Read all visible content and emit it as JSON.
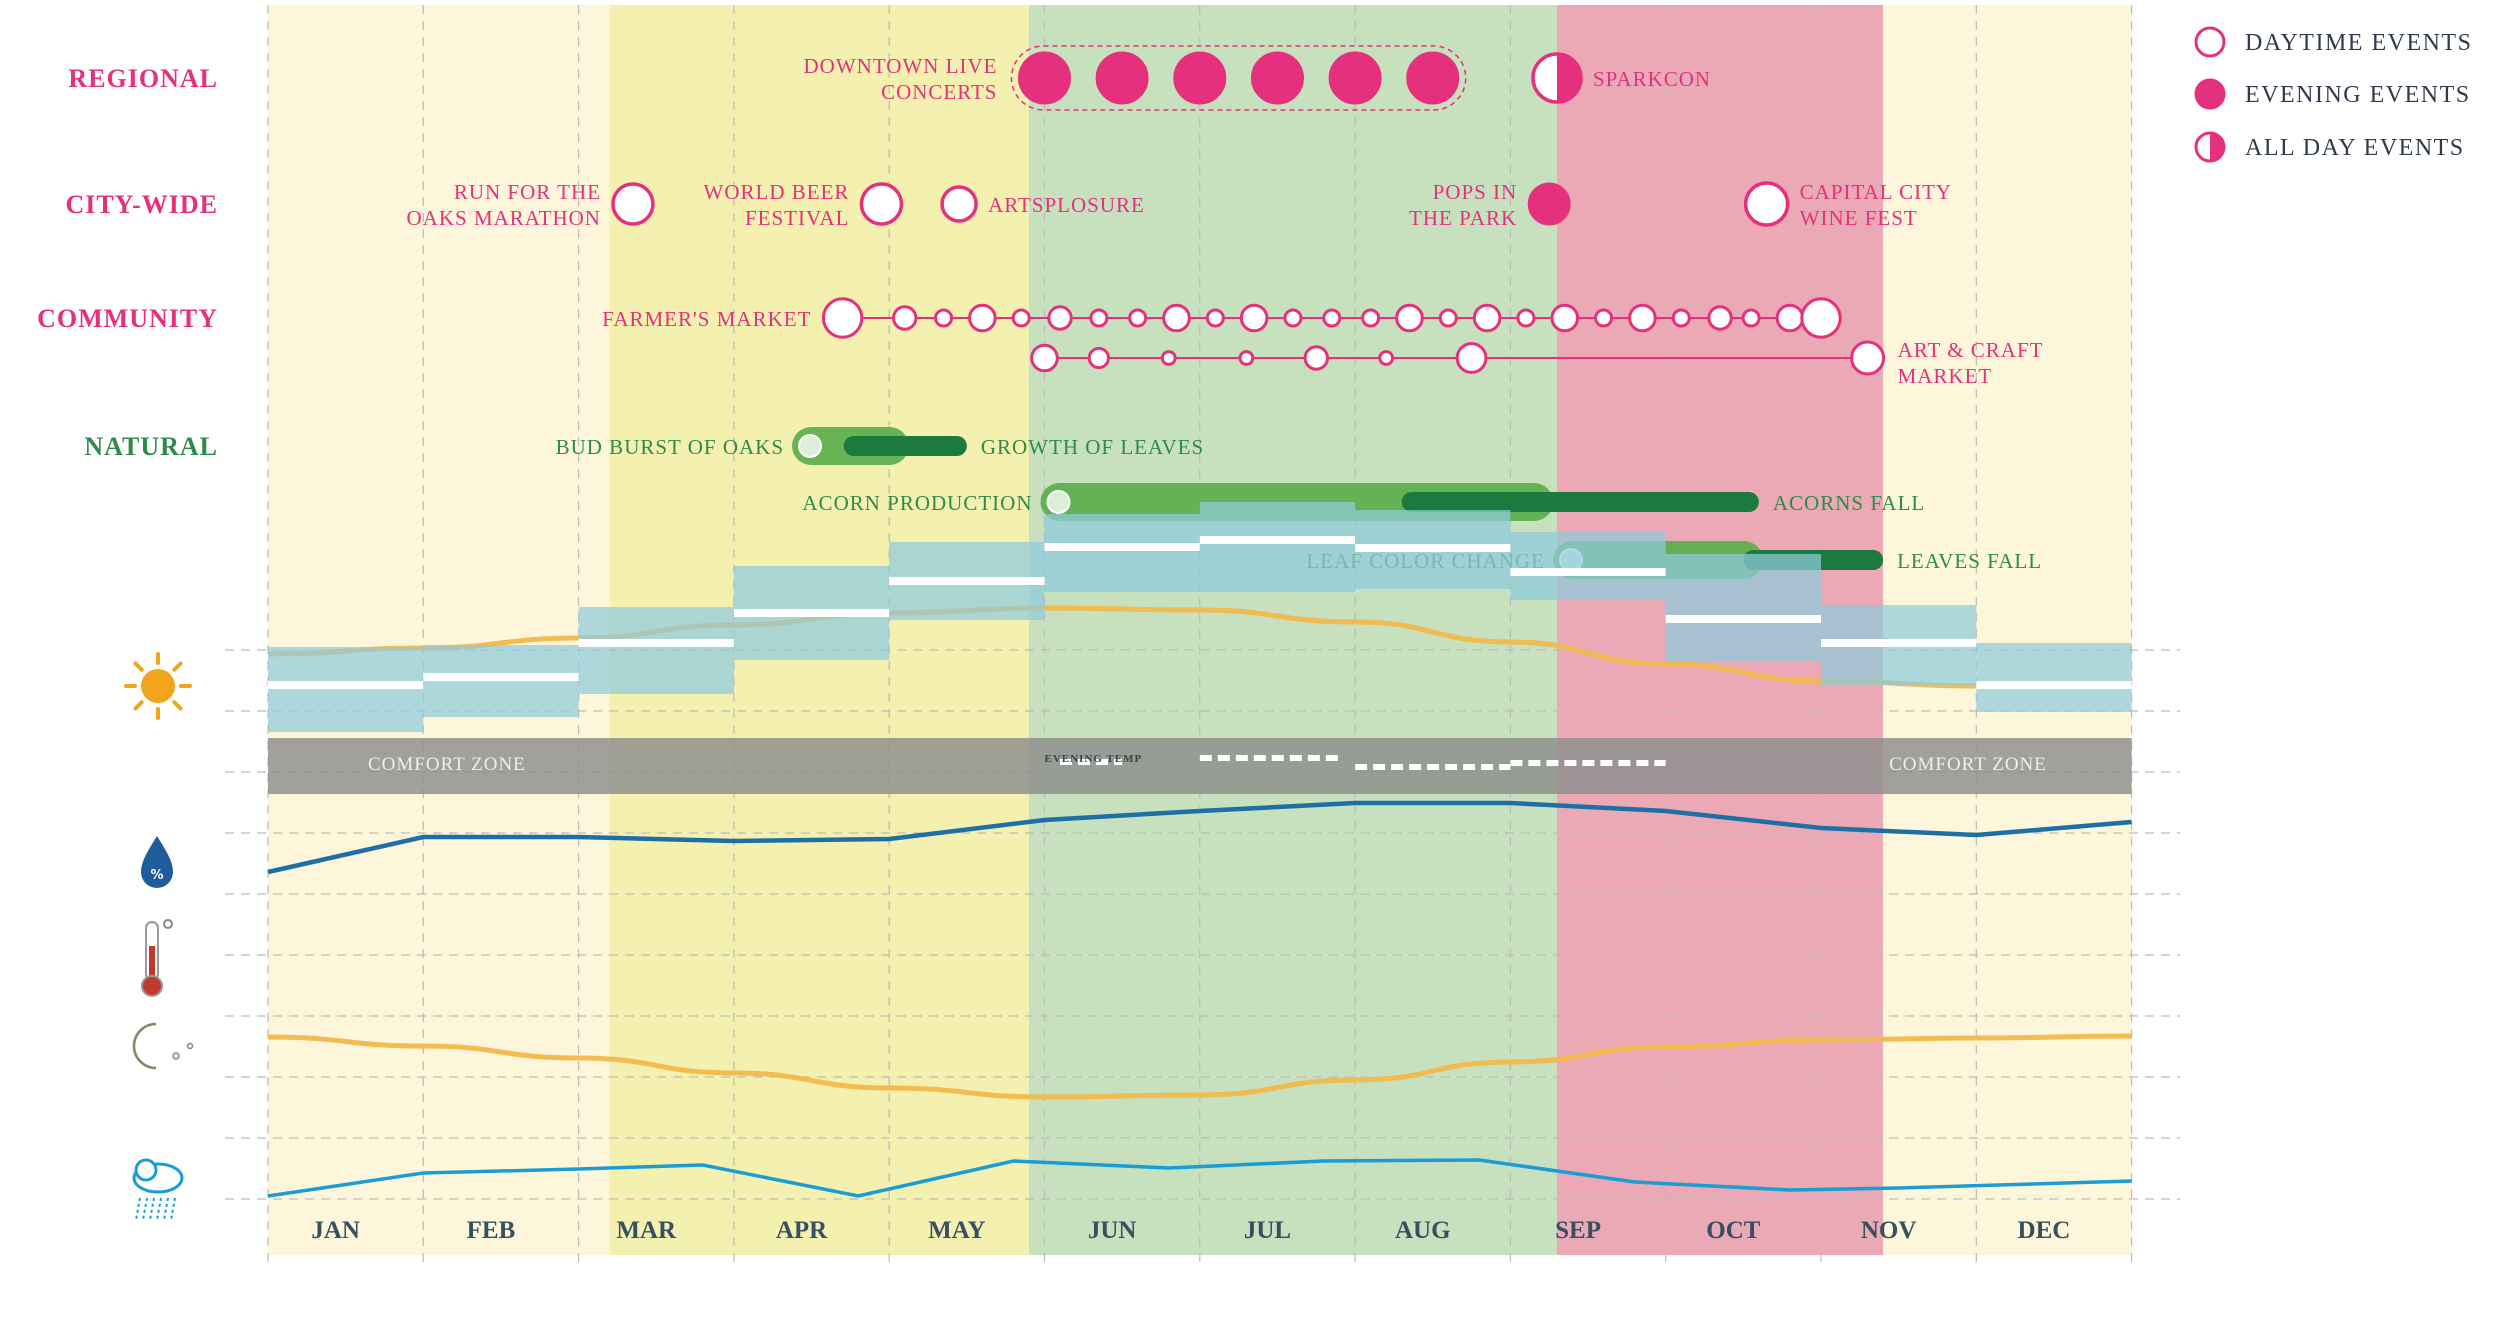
{
  "colors": {
    "accent_pink": "#E5307E",
    "natural_green": "#2E8B4A",
    "season_winter": "#FDF6DA",
    "season_spring": "#F4F0B0",
    "season_summer": "#C7E0BE",
    "season_fall": "#EAA9B4",
    "sunrise_line": "#F2B84B",
    "humidity_line": "#1E6FA6",
    "rain_line": "#1A9DD4",
    "temp_band": "#8FCBDC",
    "comfort_band": "#8C8C8C"
  },
  "categories": [
    {
      "key": "regional",
      "label": "REGIONAL"
    },
    {
      "key": "citywide",
      "label": "CITY-WIDE"
    },
    {
      "key": "community",
      "label": "COMMUNITY"
    },
    {
      "key": "natural",
      "label": "NATURAL"
    }
  ],
  "legend": [
    {
      "kind": "daytime",
      "label": "DAYTIME  EVENTS"
    },
    {
      "kind": "evening",
      "label": "EVENING  EVENTS"
    },
    {
      "kind": "allday",
      "label": "ALL DAY EVENTS"
    }
  ],
  "annotations": {
    "comfort_zone_left": "COMFORT ZONE",
    "comfort_zone_right": "COMFORT ZONE",
    "evening_temp": "EVENING TEMP"
  },
  "icons": [
    "sun-icon",
    "humidity-drop-icon",
    "thermometer-icon",
    "moon-icon",
    "rain-cloud-icon"
  ],
  "chart_data": {
    "type": "timeline",
    "months": [
      "JAN",
      "FEB",
      "MAR",
      "APR",
      "MAY",
      "JUN",
      "JUL",
      "AUG",
      "SEP",
      "OCT",
      "NOV",
      "DEC"
    ],
    "seasons": [
      {
        "name": "winter",
        "start": 0,
        "end": 2.2
      },
      {
        "name": "spring",
        "start": 2.2,
        "end": 4.9
      },
      {
        "name": "summer",
        "start": 4.9,
        "end": 8.3
      },
      {
        "name": "fall",
        "start": 8.3,
        "end": 10.4
      },
      {
        "name": "winter",
        "start": 10.4,
        "end": 12
      }
    ],
    "events": [
      {
        "row": "regional",
        "label": [
          "DOWNTOWN LIVE",
          "CONCERTS"
        ],
        "type": "evening",
        "dates": [
          5,
          5.5,
          6,
          6.5,
          7,
          7.5
        ],
        "size": 25,
        "group_outline": true
      },
      {
        "row": "regional",
        "label": [
          "SPARKCON"
        ],
        "type": "allday",
        "dates": [
          8.3
        ],
        "size": 24,
        "label_side": "right"
      },
      {
        "row": "citywide",
        "label": [
          "RUN FOR THE",
          "OAKS MARATHON"
        ],
        "type": "daytime",
        "dates": [
          2.35
        ],
        "size": 20
      },
      {
        "row": "citywide",
        "label": [
          "WORLD BEER",
          "FESTIVAL"
        ],
        "type": "daytime",
        "dates": [
          3.95
        ],
        "size": 20
      },
      {
        "row": "citywide",
        "label": [
          "ARTSPLOSURE"
        ],
        "type": "daytime",
        "dates": [
          4.45
        ],
        "size": 17,
        "label_side": "right"
      },
      {
        "row": "citywide",
        "label": [
          "POPS IN",
          "THE PARK"
        ],
        "type": "evening",
        "dates": [
          8.25
        ],
        "size": 20
      },
      {
        "row": "citywide",
        "label": [
          "CAPITAL CITY",
          "WINE FEST"
        ],
        "type": "daytime",
        "dates": [
          9.65
        ],
        "size": 21,
        "label_side": "right"
      }
    ],
    "series_markets": [
      {
        "label": [
          "FARMER'S MARKET"
        ],
        "label_side": "left",
        "dates": [
          3.7,
          4.1,
          4.35,
          4.6,
          4.85,
          5.1,
          5.35,
          5.6,
          5.85,
          6.1,
          6.35,
          6.6,
          6.85,
          7.1,
          7.35,
          7.6,
          7.85,
          8.1,
          8.35,
          8.6,
          8.85,
          9.1,
          9.35,
          9.55,
          9.8,
          10.0
        ],
        "sizes": [
          12,
          7,
          5,
          8,
          5,
          7,
          5,
          5,
          8,
          5,
          8,
          5,
          5,
          5,
          8,
          5,
          8,
          5,
          8,
          5,
          8,
          5,
          7,
          5,
          8,
          12
        ]
      },
      {
        "label": [
          "ART & CRAFT",
          "MARKET"
        ],
        "label_side": "right",
        "dates": [
          5.0,
          5.35,
          5.8,
          6.3,
          6.75,
          7.2,
          7.75,
          10.3
        ],
        "sizes": [
          8,
          6,
          4,
          4,
          7,
          4,
          9,
          10
        ]
      }
    ],
    "natural": [
      {
        "start_label": "BUD BURST OF OAKS",
        "end_label": "GROWTH OF LEAVES",
        "light": [
          3.4,
          4.1
        ],
        "dark": [
          3.45,
          4.5
        ]
      },
      {
        "start_label": "ACORN PRODUCTION",
        "end_label": "ACORNS FALL",
        "light": [
          5.0,
          8.25
        ],
        "dark": [
          7.3,
          9.6
        ]
      },
      {
        "start_label": "LEAF COLOR CHANGE",
        "end_label": "LEAVES FALL",
        "light": [
          8.3,
          9.6
        ],
        "dark": [
          9.5,
          10.4
        ]
      }
    ],
    "sunrise": [
      74,
      68,
      58,
      45,
      33,
      28,
      30,
      42,
      62,
      84,
      101,
      106,
      106
    ],
    "sunset": [
      647,
      656,
      668,
      683,
      698,
      707,
      705,
      690,
      672,
      657,
      650,
      648,
      646
    ],
    "temp_bands": [
      [
        555,
        640,
        593
      ],
      [
        553,
        625,
        585
      ],
      [
        515,
        602,
        551
      ],
      [
        474,
        568,
        521
      ],
      [
        450,
        528,
        489
      ],
      [
        422,
        500,
        455
      ],
      [
        410,
        500,
        448
      ],
      [
        418,
        497,
        456
      ],
      [
        440,
        508,
        480
      ],
      [
        462,
        570,
        527
      ],
      [
        513,
        593,
        551
      ],
      [
        551,
        620,
        593
      ]
    ],
    "evening_temp": [
      [
        5.1,
        5.5,
        478
      ],
      [
        6.0,
        6.9,
        474
      ],
      [
        7.0,
        8.0,
        483
      ],
      [
        8.0,
        9.0,
        479
      ]
    ],
    "humidity": [
      [
        0,
        546
      ],
      [
        1,
        511
      ],
      [
        2,
        511
      ],
      [
        3,
        515
      ],
      [
        4,
        513
      ],
      [
        5,
        494
      ],
      [
        6,
        485
      ],
      [
        7,
        477
      ],
      [
        8,
        477
      ],
      [
        9,
        485
      ],
      [
        10,
        502
      ],
      [
        11,
        509
      ],
      [
        12,
        496
      ]
    ],
    "rain": [
      [
        0,
        748
      ],
      [
        1,
        725
      ],
      [
        2,
        721
      ],
      [
        2.8,
        717
      ],
      [
        3.8,
        748
      ],
      [
        4.8,
        713
      ],
      [
        5.8,
        720
      ],
      [
        6.8,
        713
      ],
      [
        7.8,
        712
      ],
      [
        8.8,
        734
      ],
      [
        9.8,
        742
      ],
      [
        10.5,
        740
      ],
      [
        12,
        733
      ]
    ]
  }
}
